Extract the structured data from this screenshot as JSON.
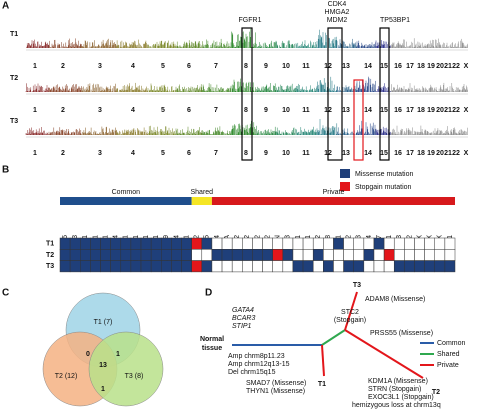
{
  "panel_a": {
    "label": "A",
    "tracks": [
      "T1",
      "T2",
      "T3"
    ],
    "chromosomes": [
      "1",
      "2",
      "3",
      "4",
      "5",
      "6",
      "7",
      "8",
      "9",
      "10",
      "11",
      "12",
      "13",
      "14",
      "15",
      "16",
      "17",
      "18",
      "19",
      "20",
      "21",
      "22",
      "X"
    ],
    "annotations": [
      "FGFR1",
      "CDK4",
      "HMGA2",
      "MDM2",
      "TP53BP1"
    ]
  },
  "panel_b": {
    "label": "B",
    "legend": [
      {
        "label": "Missense mutation",
        "color": "#1f3f7a"
      },
      {
        "label": "Stopgain mutation",
        "color": "#e3161b"
      }
    ],
    "samples": [
      "T1",
      "T2",
      "T3"
    ],
    "groups": [
      {
        "name": "Common",
        "color": "#1f4e8c",
        "genes": [
          {
            "name": "WDR65",
            "calls": [
              1,
              1,
              1
            ]
          },
          {
            "name": "BCAR3",
            "calls": [
              1,
              1,
              1
            ]
          },
          {
            "name": "ACAR1",
            "calls": [
              1,
              1,
              1
            ]
          },
          {
            "name": "FAT1",
            "calls": [
              1,
              1,
              1
            ]
          },
          {
            "name": "CFRT11",
            "calls": [
              1,
              1,
              1
            ]
          },
          {
            "name": "GATA4",
            "calls": [
              1,
              1,
              1
            ]
          },
          {
            "name": "RAPGEF1",
            "calls": [
              1,
              1,
              1
            ]
          },
          {
            "name": "TNKS1BP1",
            "calls": [
              1,
              1,
              1
            ]
          },
          {
            "name": "STIP1",
            "calls": [
              1,
              1,
              1
            ]
          },
          {
            "name": "RPL21",
            "calls": [
              1,
              1,
              1
            ]
          },
          {
            "name": "TMPRSS9",
            "calls": [
              1,
              1,
              1
            ]
          },
          {
            "name": "GTF3A4",
            "calls": [
              1,
              1,
              1
            ]
          },
          {
            "name": "KRTAP20-1",
            "calls": [
              1,
              1,
              1
            ]
          }
        ]
      },
      {
        "name": "Shared",
        "color": "#f5e625",
        "genes": [
          {
            "name": "STC2",
            "calls": [
              2,
              0,
              2
            ]
          },
          {
            "name": "PRSS55",
            "calls": [
              1,
              0,
              1
            ]
          }
        ]
      },
      {
        "name": "Private",
        "color": "#d7191c",
        "genes": [
          {
            "name": "HES4",
            "calls": [
              0,
              1,
              0
            ]
          },
          {
            "name": "KDM1A",
            "calls": [
              0,
              1,
              0
            ]
          },
          {
            "name": "TRAPPC12",
            "calls": [
              0,
              1,
              0
            ]
          },
          {
            "name": "TRAPPC12",
            "calls": [
              0,
              1,
              0
            ]
          },
          {
            "name": "TRAPPC12",
            "calls": [
              0,
              1,
              0
            ]
          },
          {
            "name": "TRAPPC12",
            "calls": [
              0,
              1,
              0
            ]
          },
          {
            "name": "STRN",
            "calls": [
              0,
              2,
              0
            ]
          },
          {
            "name": "CSMD3",
            "calls": [
              0,
              1,
              0
            ]
          },
          {
            "name": "RAB6S1",
            "calls": [
              0,
              0,
              1
            ]
          },
          {
            "name": "WFS1",
            "calls": [
              0,
              0,
              1
            ]
          },
          {
            "name": "FOXB2",
            "calls": [
              0,
              1,
              0
            ]
          },
          {
            "name": "ADAM8",
            "calls": [
              0,
              0,
              1
            ]
          },
          {
            "name": "THYN1",
            "calls": [
              1,
              0,
              0
            ]
          },
          {
            "name": "FCMR2",
            "calls": [
              0,
              0,
              1
            ]
          },
          {
            "name": "STARD13",
            "calls": [
              0,
              0,
              1
            ]
          },
          {
            "name": "DDIT4",
            "calls": [
              0,
              1,
              0
            ]
          },
          {
            "name": "SMAD7",
            "calls": [
              1,
              0,
              0
            ]
          },
          {
            "name": "EXOC3L1",
            "calls": [
              0,
              2,
              0
            ]
          },
          {
            "name": "PITPNM3",
            "calls": [
              0,
              0,
              1
            ]
          },
          {
            "name": "HSPG2",
            "calls": [
              0,
              0,
              1
            ]
          },
          {
            "name": "PCNX",
            "calls": [
              0,
              0,
              1
            ]
          },
          {
            "name": "P2RX",
            "calls": [
              0,
              0,
              1
            ]
          },
          {
            "name": "PDHX",
            "calls": [
              0,
              0,
              1
            ]
          },
          {
            "name": "MAGEE1",
            "calls": [
              0,
              0,
              1
            ]
          }
        ]
      }
    ]
  },
  "panel_c": {
    "label": "C",
    "sets": [
      "T1 (7)",
      "T2 (12)",
      "T3 (8)"
    ],
    "overlaps": [
      0,
      1,
      1,
      13
    ]
  },
  "panel_d": {
    "label": "D",
    "root": [
      "Normal",
      "tissue"
    ],
    "trunk_genes": [
      "GATA4",
      "BCAR3",
      "STIP1"
    ],
    "trunk_cnv": [
      "Amp chrm8p11.23",
      "Amp chrm12q13-15",
      "Del chrm15q15"
    ],
    "shared": [
      "STC2",
      "(Stopgain)",
      "PRSS55 (Missense)"
    ],
    "tips": [
      "T1",
      "T2",
      "T3"
    ],
    "t1": [
      "SMAD7 (Missense)",
      "THYN1 (Missense)"
    ],
    "t2": [
      "KDM1A (Missense)",
      "STRN (Stopgain)",
      "EXOC3L1 (Stopgain)",
      "hemizygous loss at chrm13q"
    ],
    "t3": [
      "ADAM8 (Missense)"
    ],
    "legend": [
      {
        "label": "Common",
        "color": "#2a5ca8"
      },
      {
        "label": "Shared",
        "color": "#2fa84f"
      },
      {
        "label": "Private",
        "color": "#e3161b"
      }
    ]
  }
}
